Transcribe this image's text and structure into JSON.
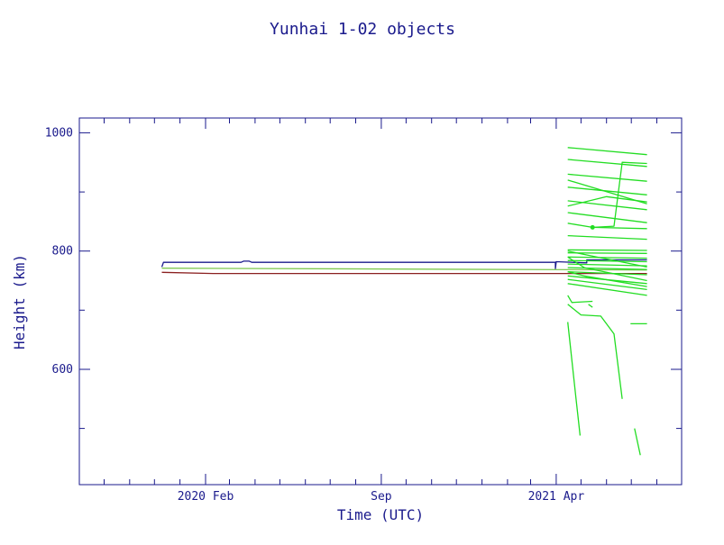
{
  "chart_data": {
    "type": "line",
    "title": "Yunhai 1-02 objects",
    "xlabel": "Time (UTC)",
    "ylabel": "Height (km)",
    "xlim": [
      "2019-09-01",
      "2021-08-31"
    ],
    "ylim": [
      405,
      1025
    ],
    "x_ticks_major": [
      {
        "date": "2020-02-01",
        "label": "2020 Feb"
      },
      {
        "date": "2020-09-01",
        "label": "Sep"
      },
      {
        "date": "2021-04-01",
        "label": "2021 Apr"
      }
    ],
    "x_ticks_minor": [
      "2019-10-01",
      "2019-11-01",
      "2019-12-01",
      "2020-01-01",
      "2020-03-01",
      "2020-04-01",
      "2020-05-01",
      "2020-06-01",
      "2020-07-01",
      "2020-08-01",
      "2020-10-01",
      "2020-11-01",
      "2020-12-01",
      "2021-01-01",
      "2021-02-01",
      "2021-03-01",
      "2021-05-01",
      "2021-06-01",
      "2021-07-01",
      "2021-08-01"
    ],
    "y_ticks_major": [
      600,
      800,
      1000
    ],
    "y_ticks_minor": [
      500,
      700,
      900
    ],
    "grid": false,
    "colors": {
      "axes": "#1a1a8c",
      "payload": "#1a1a8c",
      "rocket_body": "#8b2020",
      "objects": "#7ec850",
      "debris": "#22dd22"
    },
    "series": [
      {
        "color": "#1a1a8c",
        "points": [
          [
            "2019-12-10",
            773
          ],
          [
            "2019-12-12",
            781
          ],
          [
            "2020-03-15",
            781
          ],
          [
            "2020-03-18",
            783
          ],
          [
            "2020-03-25",
            783
          ],
          [
            "2020-03-28",
            781
          ],
          [
            "2021-03-20",
            781
          ],
          [
            "2021-03-31",
            781
          ],
          [
            "2021-03-31",
            770
          ],
          [
            "2021-04-01",
            782
          ],
          [
            "2021-05-08",
            780
          ],
          [
            "2021-05-08",
            785
          ],
          [
            "2021-07-20",
            785
          ]
        ]
      },
      {
        "color": "#8b2020",
        "points": [
          [
            "2019-12-10",
            764
          ],
          [
            "2020-02-10",
            762
          ],
          [
            "2021-07-20",
            762
          ]
        ]
      },
      {
        "color": "#7ec850",
        "points": [
          [
            "2019-12-10",
            771
          ],
          [
            "2021-07-20",
            768
          ]
        ]
      },
      {
        "color": "#22dd22",
        "points": [
          [
            "2021-04-15",
            975
          ],
          [
            "2021-07-20",
            963
          ]
        ]
      },
      {
        "color": "#22dd22",
        "points": [
          [
            "2021-04-15",
            955
          ],
          [
            "2021-07-20",
            943
          ]
        ]
      },
      {
        "color": "#22dd22",
        "points": [
          [
            "2021-04-15",
            930
          ],
          [
            "2021-07-20",
            918
          ]
        ]
      },
      {
        "color": "#22dd22",
        "points": [
          [
            "2021-04-15",
            920
          ],
          [
            "2021-07-20",
            880
          ]
        ]
      },
      {
        "color": "#22dd22",
        "points": [
          [
            "2021-04-15",
            908
          ],
          [
            "2021-07-20",
            895
          ]
        ]
      },
      {
        "color": "#22dd22",
        "points": [
          [
            "2021-04-15",
            885
          ],
          [
            "2021-07-20",
            870
          ]
        ]
      },
      {
        "color": "#22dd22",
        "points": [
          [
            "2021-04-15",
            876
          ],
          [
            "2021-06-01",
            892
          ],
          [
            "2021-07-20",
            883
          ]
        ]
      },
      {
        "color": "#22dd22",
        "points": [
          [
            "2021-04-15",
            865
          ],
          [
            "2021-07-20",
            848
          ]
        ]
      },
      {
        "color": "#22dd22",
        "points": [
          [
            "2021-04-15",
            847
          ],
          [
            "2021-05-15",
            840
          ],
          [
            "2021-07-20",
            838
          ]
        ]
      },
      {
        "color": "#22dd22",
        "points": [
          [
            "2021-05-15",
            840
          ],
          [
            "2021-06-10",
            842
          ],
          [
            "2021-06-20",
            950
          ],
          [
            "2021-07-20",
            948
          ]
        ]
      },
      {
        "color": "#22dd22",
        "points": [
          [
            "2021-04-15",
            826
          ],
          [
            "2021-07-20",
            820
          ]
        ]
      },
      {
        "color": "#22dd22",
        "points": [
          [
            "2021-04-15",
            802
          ],
          [
            "2021-07-20",
            801
          ]
        ]
      },
      {
        "color": "#22dd22",
        "points": [
          [
            "2021-04-15",
            797
          ],
          [
            "2021-07-20",
            796
          ]
        ]
      },
      {
        "color": "#22dd22",
        "points": [
          [
            "2021-04-15",
            790
          ],
          [
            "2021-07-20",
            788
          ]
        ]
      },
      {
        "color": "#22dd22",
        "points": [
          [
            "2021-04-15",
            784
          ],
          [
            "2021-07-20",
            782
          ]
        ]
      },
      {
        "color": "#22dd22",
        "points": [
          [
            "2021-04-15",
            778
          ],
          [
            "2021-07-20",
            775
          ]
        ]
      },
      {
        "color": "#22dd22",
        "points": [
          [
            "2021-04-15",
            772
          ],
          [
            "2021-07-20",
            769
          ]
        ]
      },
      {
        "color": "#22dd22",
        "points": [
          [
            "2021-04-15",
            765
          ],
          [
            "2021-07-20",
            760
          ]
        ]
      },
      {
        "color": "#22dd22",
        "points": [
          [
            "2021-04-15",
            758
          ],
          [
            "2021-07-20",
            745
          ]
        ]
      },
      {
        "color": "#22dd22",
        "points": [
          [
            "2021-04-15",
            752
          ],
          [
            "2021-07-20",
            735
          ]
        ]
      },
      {
        "color": "#22dd22",
        "points": [
          [
            "2021-04-15",
            745
          ],
          [
            "2021-07-20",
            725
          ]
        ]
      },
      {
        "color": "#22dd22",
        "points": [
          [
            "2021-04-15",
            800
          ],
          [
            "2021-05-20",
            790
          ],
          [
            "2021-07-20",
            773
          ]
        ]
      },
      {
        "color": "#22dd22",
        "points": [
          [
            "2021-04-15",
            790
          ],
          [
            "2021-05-05",
            772
          ],
          [
            "2021-07-20",
            750
          ]
        ]
      },
      {
        "color": "#22dd22",
        "points": [
          [
            "2021-04-15",
            765
          ],
          [
            "2021-05-05",
            758
          ],
          [
            "2021-07-20",
            740
          ]
        ]
      },
      {
        "color": "#22dd22",
        "points": [
          [
            "2021-04-15",
            725
          ],
          [
            "2021-04-20",
            713
          ],
          [
            "2021-05-15",
            715
          ]
        ]
      },
      {
        "color": "#22dd22",
        "points": [
          [
            "2021-05-10",
            710
          ],
          [
            "2021-05-15",
            705
          ]
        ]
      },
      {
        "color": "#22dd22",
        "points": [
          [
            "2021-04-15",
            710
          ],
          [
            "2021-05-01",
            692
          ],
          [
            "2021-05-25",
            690
          ],
          [
            "2021-06-10",
            660
          ],
          [
            "2021-06-20",
            550
          ]
        ]
      },
      {
        "color": "#22dd22",
        "points": [
          [
            "2021-04-15",
            680
          ],
          [
            "2021-04-25",
            550
          ],
          [
            "2021-04-30",
            488
          ]
        ]
      },
      {
        "color": "#22dd22",
        "points": [
          [
            "2021-06-30",
            677
          ],
          [
            "2021-07-20",
            677
          ]
        ]
      },
      {
        "color": "#22dd22",
        "points": [
          [
            "2021-07-05",
            500
          ],
          [
            "2021-07-12",
            455
          ]
        ]
      }
    ],
    "markers": [
      {
        "color": "#22dd22",
        "date": "2021-05-15",
        "value": 840
      }
    ]
  }
}
